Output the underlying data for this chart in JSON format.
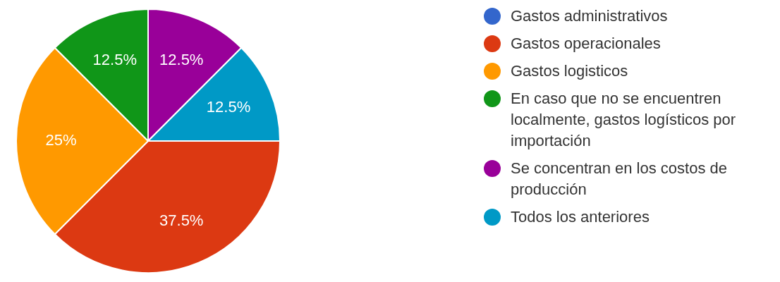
{
  "chart_data": {
    "type": "pie",
    "categories": [
      "Gastos administrativos",
      "Gastos operacionales",
      "Gastos logisticos",
      "En caso que no se encuentren localmente, gastos logísticos por importación",
      "Se concentran en los costos de producción",
      "Todos los anteriores"
    ],
    "values": [
      0,
      37.5,
      25,
      12.5,
      12.5,
      12.5
    ],
    "value_labels": [
      null,
      "37.5%",
      "25%",
      "12.5%",
      "12.5%",
      "12.5%"
    ],
    "colors": [
      "#3366cc",
      "#dc3912",
      "#ff9900",
      "#109618",
      "#990099",
      "#0099c6"
    ],
    "legend": "right"
  }
}
